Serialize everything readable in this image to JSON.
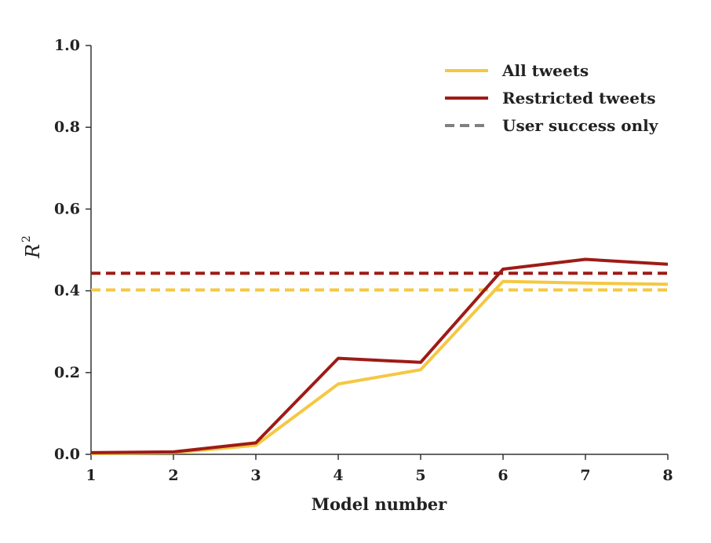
{
  "chart_data": {
    "type": "line",
    "xlabel": "Model number",
    "ylabel": {
      "base": "R",
      "superscript": "2"
    },
    "x": [
      1,
      2,
      3,
      4,
      5,
      6,
      7,
      8
    ],
    "xlim": [
      1,
      8
    ],
    "ylim": [
      0,
      1
    ],
    "yticks": [
      "0.0",
      "0.2",
      "0.4",
      "0.6",
      "0.8",
      "1.0"
    ],
    "xticks": [
      "1",
      "2",
      "3",
      "4",
      "5",
      "6",
      "7",
      "8"
    ],
    "grid": false,
    "legend_position": "top-right",
    "series": [
      {
        "name": "All tweets",
        "color": "#F5C842",
        "style": "solid",
        "values": [
          0.002,
          0.004,
          0.022,
          0.172,
          0.207,
          0.423,
          0.419,
          0.416
        ]
      },
      {
        "name": "Restricted tweets",
        "color": "#9E1B16",
        "style": "solid",
        "values": [
          0.004,
          0.006,
          0.028,
          0.235,
          0.225,
          0.453,
          0.477,
          0.465
        ]
      }
    ],
    "baselines": [
      {
        "color": "#F5C842",
        "style": "dashed",
        "value": 0.402
      },
      {
        "color": "#9E1B16",
        "style": "dashed",
        "value": 0.443
      }
    ],
    "legend": [
      {
        "label": "All tweets",
        "color": "#F5C842",
        "style": "solid"
      },
      {
        "label": "Restricted tweets",
        "color": "#9E1B16",
        "style": "solid"
      },
      {
        "label": "User success only",
        "color": "#808080",
        "style": "dashed"
      }
    ]
  }
}
